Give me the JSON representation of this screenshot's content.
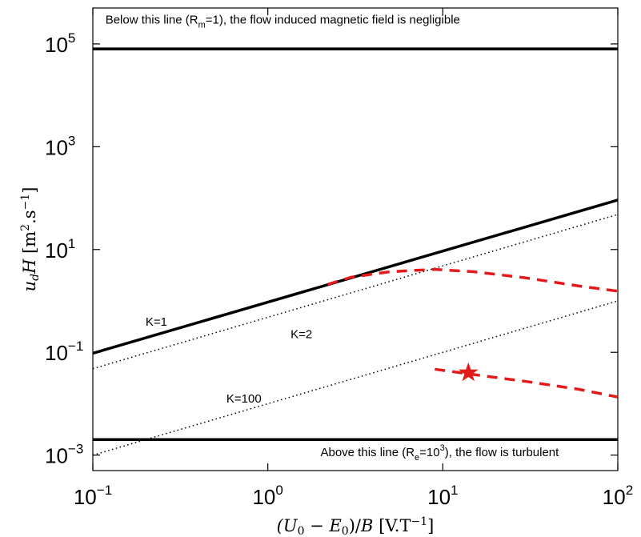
{
  "chart_data": {
    "type": "line",
    "xscale": "log",
    "yscale": "log",
    "xlim": [
      0.1,
      100
    ],
    "ylim": [
      0.0005,
      500000
    ],
    "grid": false,
    "xlabel": "(U0 − E0)/B  [V.T−1]",
    "ylabel": "udH  [m2.s−1]",
    "x_ticks": [
      {
        "base": "10",
        "exp": "−1",
        "value": 0.1
      },
      {
        "base": "10",
        "exp": "0",
        "value": 1
      },
      {
        "base": "10",
        "exp": "1",
        "value": 10
      },
      {
        "base": "10",
        "exp": "2",
        "value": 100
      }
    ],
    "y_ticks": [
      {
        "base": "10",
        "exp": "−3",
        "value": 0.001
      },
      {
        "base": "10",
        "exp": "−1",
        "value": 0.1
      },
      {
        "base": "10",
        "exp": "1",
        "value": 10
      },
      {
        "base": "10",
        "exp": "3",
        "value": 1000
      },
      {
        "base": "10",
        "exp": "5",
        "value": 100000
      }
    ],
    "series": [
      {
        "style": "solid",
        "color": "#000000",
        "x": [
          0.1,
          100
        ],
        "y": [
          80000,
          80000
        ]
      },
      {
        "style": "solid",
        "color": "#000000",
        "x": [
          0.1,
          100
        ],
        "y": [
          0.002,
          0.002
        ]
      },
      {
        "style": "solid",
        "color": "#000000",
        "x": [
          0.1,
          100
        ],
        "y": [
          0.096,
          92
        ]
      },
      {
        "style": "dotted",
        "color": "#000000",
        "x": [
          0.1,
          100
        ],
        "y": [
          0.048,
          48
        ]
      },
      {
        "style": "dotted",
        "color": "#000000",
        "x": [
          0.1,
          100
        ],
        "y": [
          0.001,
          1.0
        ]
      },
      {
        "style": "dashed",
        "color": "#e41a1a",
        "x": [
          2.2,
          3,
          5,
          9,
          15,
          30,
          60,
          100
        ],
        "y": [
          2.1,
          2.9,
          3.7,
          4.1,
          3.7,
          2.8,
          1.95,
          1.55
        ]
      },
      {
        "style": "dashed",
        "color": "#e41a1a",
        "x": [
          9,
          15,
          30,
          60,
          100
        ],
        "y": [
          0.047,
          0.037,
          0.027,
          0.019,
          0.0135
        ]
      }
    ],
    "markers": [
      {
        "shape": "star",
        "color": "#e41a1a",
        "x": 14,
        "y": 0.04
      }
    ],
    "annotations": [
      {
        "id": "rm",
        "parts": [
          "Below this line (R",
          "m",
          "=1), the flow induced magnetic field is negligible"
        ],
        "sub": 1,
        "x": 0.118,
        "y": 250000
      },
      {
        "id": "re",
        "parts": [
          "Above this line (R",
          "e",
          "=10",
          "3",
          "), the flow is turbulent"
        ],
        "sub": 1,
        "sup": 3,
        "x": 2.0,
        "y": 0.00095
      },
      {
        "id": "k1",
        "text": "K=1",
        "x": 0.2,
        "y": 0.33
      },
      {
        "id": "k2",
        "text": "K=2",
        "x": 1.35,
        "y": 0.19
      },
      {
        "id": "k100",
        "text": "K=100",
        "x": 0.58,
        "y": 0.0105
      }
    ]
  }
}
